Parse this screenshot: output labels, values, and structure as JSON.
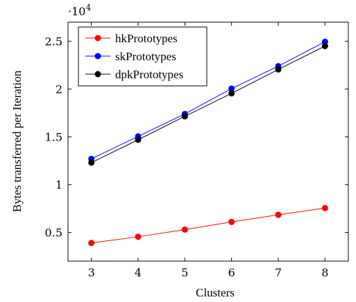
{
  "chart_data": {
    "type": "line",
    "x": [
      3,
      4,
      5,
      6,
      7,
      8
    ],
    "xlabel": "Clusters",
    "ylabel": "Bytes transferred per Iteration",
    "xlim": [
      2.5,
      8.5
    ],
    "ylim": [
      0.2,
      2.7
    ],
    "x_ticks": [
      3,
      4,
      5,
      6,
      7,
      8
    ],
    "y_ticks": [
      0.5,
      1,
      1.5,
      2,
      2.5
    ],
    "y_tick_labels": [
      "0.5",
      "1",
      "1.5",
      "2",
      "2.5"
    ],
    "y_multiplier": "·10",
    "y_multiplier_exp": "4",
    "legend_position": "top-left",
    "grid": false,
    "series": [
      {
        "name": "hkPrototypes",
        "color": "#ff0000",
        "values": [
          0.39,
          0.455,
          0.53,
          0.61,
          0.685,
          0.755
        ]
      },
      {
        "name": "skPrototypes",
        "color": "#0000ff",
        "values": [
          1.27,
          1.505,
          1.74,
          2.005,
          2.24,
          2.495
        ]
      },
      {
        "name": "dpkPrototypes",
        "color": "#000000",
        "values": [
          1.23,
          1.47,
          1.715,
          1.955,
          2.205,
          2.45
        ]
      }
    ]
  }
}
